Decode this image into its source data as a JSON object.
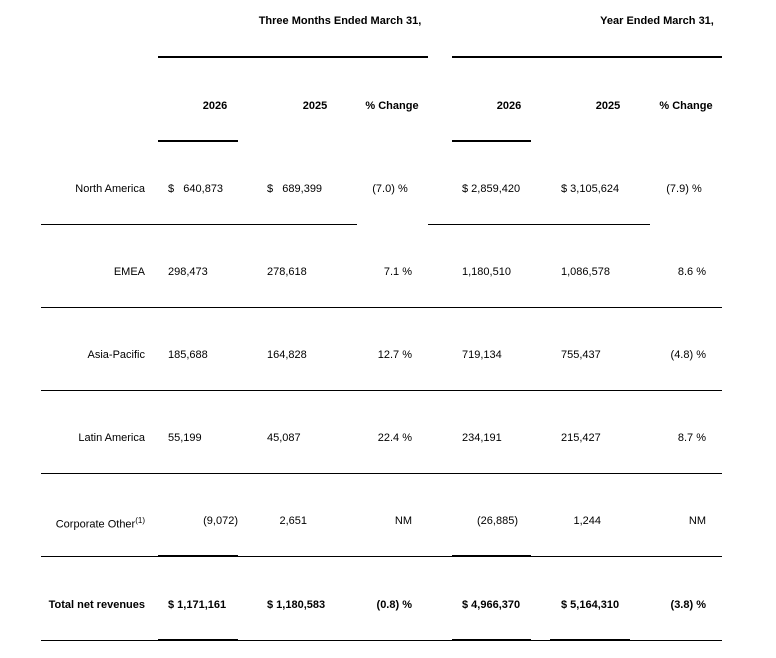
{
  "table": {
    "column_groups": [
      "Three Months Ended March 31,",
      "Year Ended March 31,"
    ],
    "columns": [
      "2026",
      "2025",
      "% Change",
      "2026",
      "2025",
      "% Change"
    ],
    "rows": [
      {
        "label": "North America",
        "cells": [
          "$   640,873",
          "$   689,399",
          "(7.0) %",
          "$ 2,859,420",
          "$ 3,105,624",
          "(7.9) %"
        ]
      },
      {
        "label": "EMEA",
        "cells": [
          "298,473",
          "278,618",
          "7.1 %",
          "1,180,510",
          "1,086,578",
          "8.6 %"
        ]
      },
      {
        "label": "Asia-Pacific",
        "cells": [
          "185,688",
          "164,828",
          "12.7 %",
          "719,134",
          "755,437",
          "(4.8) %"
        ]
      },
      {
        "label": "Latin America",
        "cells": [
          "55,199",
          "45,087",
          "22.4 %",
          "234,191",
          "215,427",
          "8.7 %"
        ]
      },
      {
        "label": "Corporate Other",
        "footnote": "(1)",
        "cells": [
          "(9,072)",
          "2,651",
          "NM",
          "(26,885)",
          "1,244",
          "NM"
        ]
      },
      {
        "label": "Total net revenues",
        "cells": [
          "$ 1,171,161",
          "$ 1,180,583",
          "(0.8) %",
          "$ 4,966,370",
          "$ 5,164,310",
          "(3.8) %"
        ]
      }
    ]
  }
}
